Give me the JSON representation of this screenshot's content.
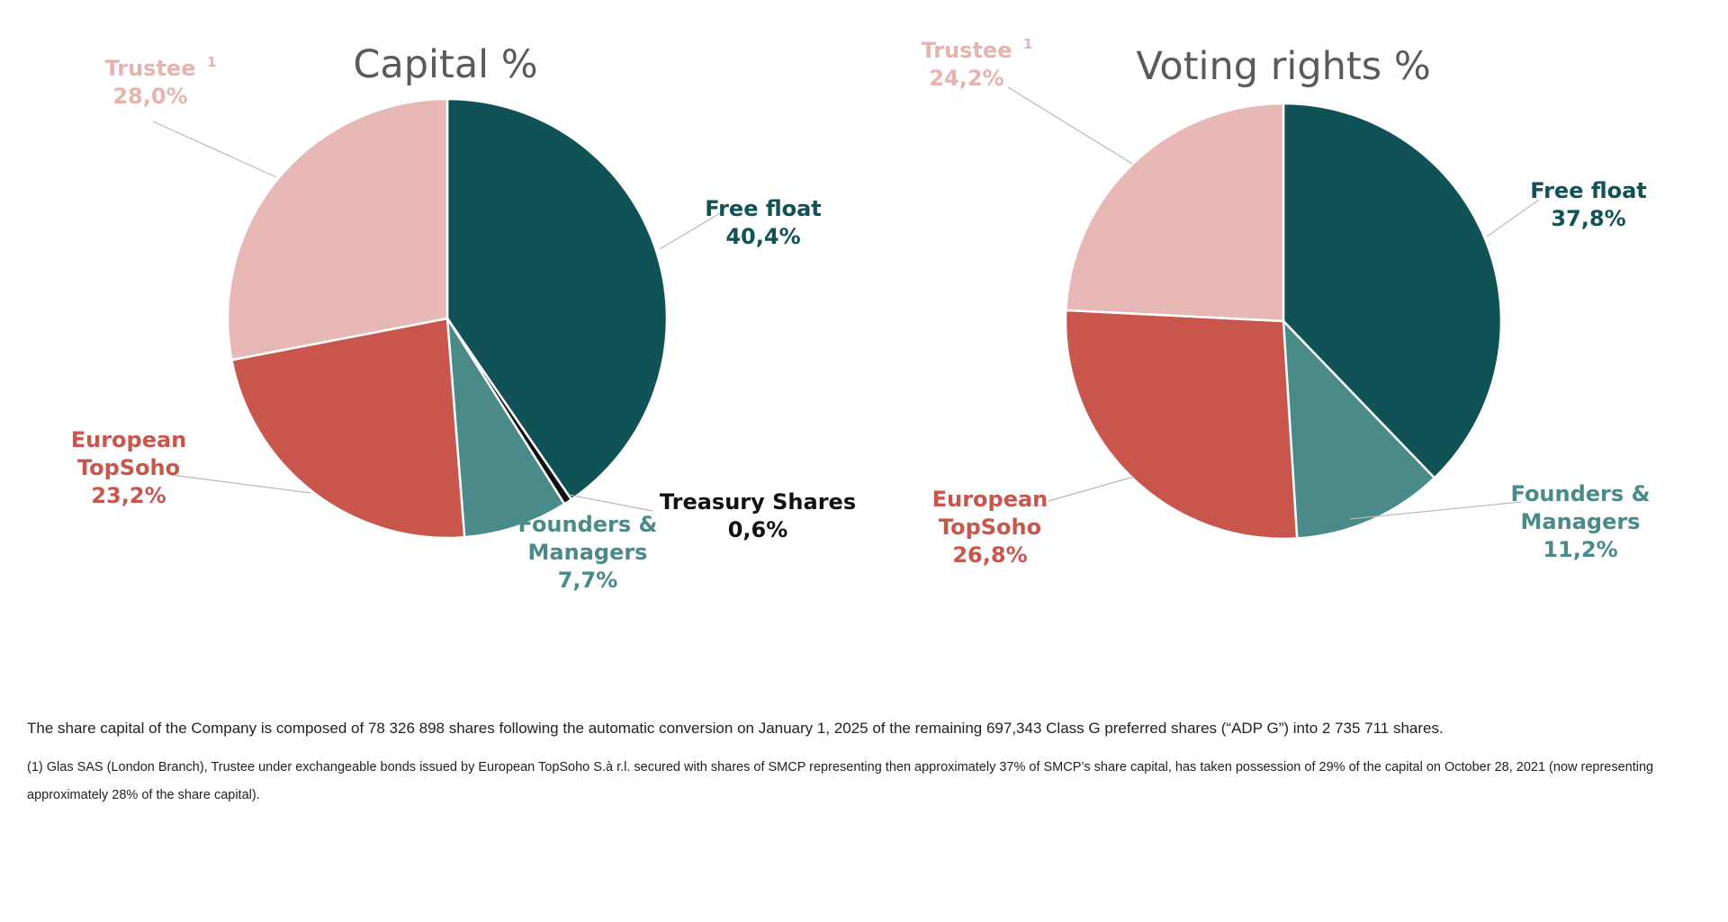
{
  "chart_data": [
    {
      "type": "pie",
      "title": "Capital %",
      "slices": [
        {
          "label": "Free float",
          "value": 40.4,
          "value_label": "40,4%",
          "color": "#115256"
        },
        {
          "label": "Treasury Shares",
          "value": 0.6,
          "value_label": "0,6%",
          "color": "#111111"
        },
        {
          "label": "Founders & Managers",
          "value": 7.7,
          "value_label": "7,7%",
          "color": "#4a8a89"
        },
        {
          "label": "European TopSoho",
          "value": 23.2,
          "value_label": "23,2%",
          "color": "#c9564d"
        },
        {
          "label": "Trustee",
          "value": 28.0,
          "value_label": "28,0%",
          "color": "#e7b8b5",
          "footnote": "1"
        }
      ]
    },
    {
      "type": "pie",
      "title": "Voting rights %",
      "slices": [
        {
          "label": "Free float",
          "value": 37.8,
          "value_label": "37,8%",
          "color": "#115256"
        },
        {
          "label": "Founders & Managers",
          "value": 11.2,
          "value_label": "11,2%",
          "color": "#4a8a89"
        },
        {
          "label": "European TopSoho",
          "value": 26.8,
          "value_label": "26,8%",
          "color": "#c9564d"
        },
        {
          "label": "Trustee",
          "value": 24.2,
          "value_label": "24,2%",
          "color": "#e7b8b5",
          "footnote": "1"
        }
      ]
    }
  ],
  "notes": {
    "share_capital": "The share capital of the Company is composed of 78 326 898 shares following the automatic conversion on January 1, 2025 of the remaining 697,343 Class G preferred shares (“ADP G”) into 2 735 711 shares.",
    "footnote_1": "(1) Glas SAS (London Branch), Trustee under exchangeable bonds issued by European TopSoho S.à r.l. secured with shares of SMCP representing then approximately 37% of SMCP’s share capital, has taken possession of 29% of the capital on October 28, 2021 (now representing approximately 28% of the share capital)."
  }
}
